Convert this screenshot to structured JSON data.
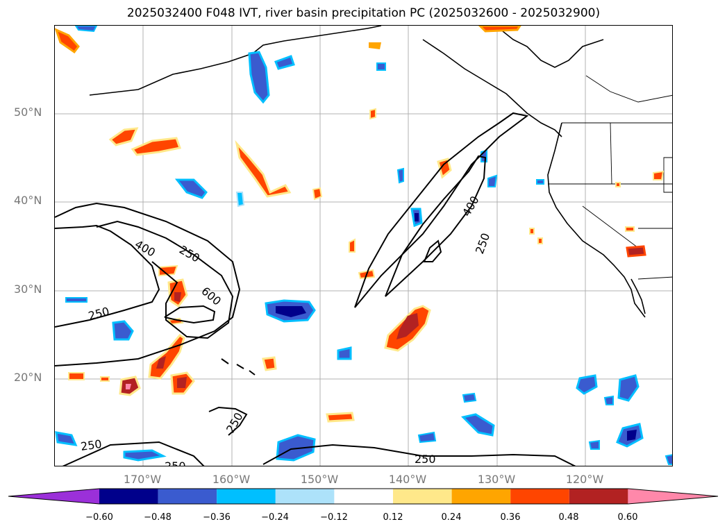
{
  "title": "2025032400 F048 IVT, river basin precipitation PC (2025032600 - 2025032900)",
  "lat_labels": [
    "50°N",
    "40°N",
    "30°N",
    "20°N"
  ],
  "lon_labels": [
    "170°W",
    "160°W",
    "150°W",
    "140°W",
    "130°W",
    "120°W"
  ],
  "ivt_contour_labels": [
    "400",
    "250",
    "600",
    "250",
    "250",
    "250",
    "250",
    "400",
    "250",
    "250"
  ],
  "colorbar": {
    "ticks": [
      "−0.60",
      "−0.48",
      "−0.36",
      "−0.24",
      "−0.12",
      "0.12",
      "0.24",
      "0.36",
      "0.48",
      "0.60"
    ],
    "colors": [
      "#9b30d9",
      "#00008b",
      "#3a5bcf",
      "#00bfff",
      "#ade2fa",
      "#ffffff",
      "#ffe88a",
      "#ffa500",
      "#ff4500",
      "#b22222",
      "#ff88aa"
    ]
  }
}
